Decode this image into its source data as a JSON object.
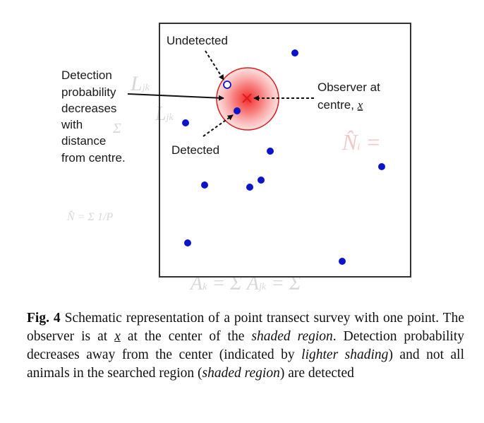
{
  "diagram": {
    "label_undetected": "Undetected",
    "label_detected": "Detected",
    "label_observer_line1": "Observer at",
    "label_observer_line2_prefix": "centre, ",
    "label_observer_symbol": "x",
    "label_detection_lines": [
      "Detection",
      "probability",
      "decreases",
      "with",
      "distance",
      "from centre."
    ],
    "colors": {
      "dot": "#0a14c8",
      "circle_fill": "#f53b3b",
      "circle_stroke": "#d91e1e",
      "observer_mark": "#e11b1b",
      "frame": "#333333"
    }
  },
  "caption": {
    "fig_label": "Fig. 4",
    "part1": " Schematic representation of a point transect survey with one point. The observer is at ",
    "symbol_x": "x",
    "part2": " at the center of the ",
    "em1": "shaded region",
    "part3": ". Detection probability decreases away from the center (indicated by ",
    "em2": "lighter shading",
    "part4": ") and not all animals in the searched region (",
    "em3": "shaded region",
    "part5": ") are detected"
  }
}
